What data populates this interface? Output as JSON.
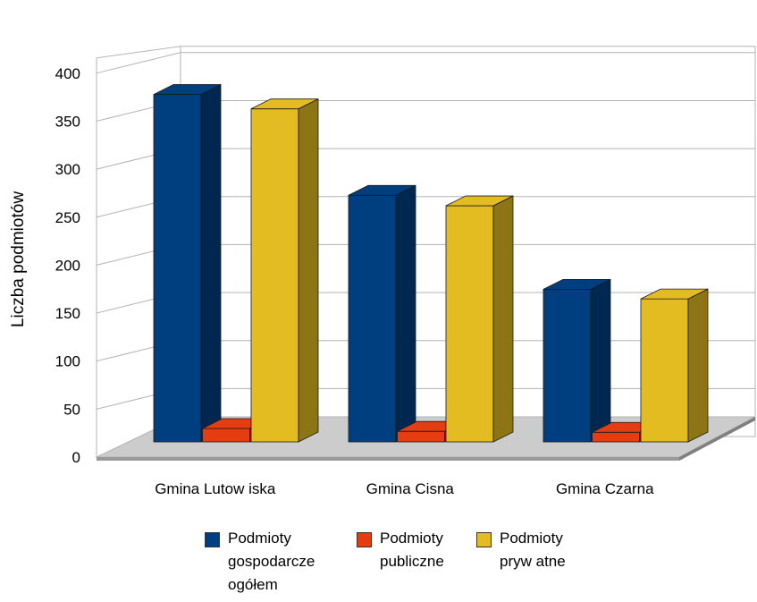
{
  "chart_data": {
    "type": "bar",
    "title": "",
    "xlabel": "",
    "ylabel": "Liczba podmiotów",
    "ylim": [
      0,
      400
    ],
    "yticks": [
      0,
      50,
      100,
      150,
      200,
      250,
      300,
      350,
      400
    ],
    "grid": true,
    "three_d": true,
    "legend_position": "bottom",
    "categories": [
      "Gmina Lutow iska",
      "Gmina Cisna",
      "Gmina Czarna"
    ],
    "series": [
      {
        "name": "Podmioty gospodarcze ogółem",
        "legend_label": "Podmioty\ngospodarcze\nogółem",
        "color": "#003f7f",
        "values": [
          362,
          257,
          159
        ]
      },
      {
        "name": "Podmioty publiczne",
        "legend_label": "Podmioty\npubliczne",
        "color": "#e43d12",
        "values": [
          14,
          11,
          10
        ]
      },
      {
        "name": "Podmioty prywatne",
        "legend_label": "Podmioty\npryw atne",
        "color": "#e3bc22",
        "values": [
          347,
          246,
          149
        ]
      }
    ]
  }
}
